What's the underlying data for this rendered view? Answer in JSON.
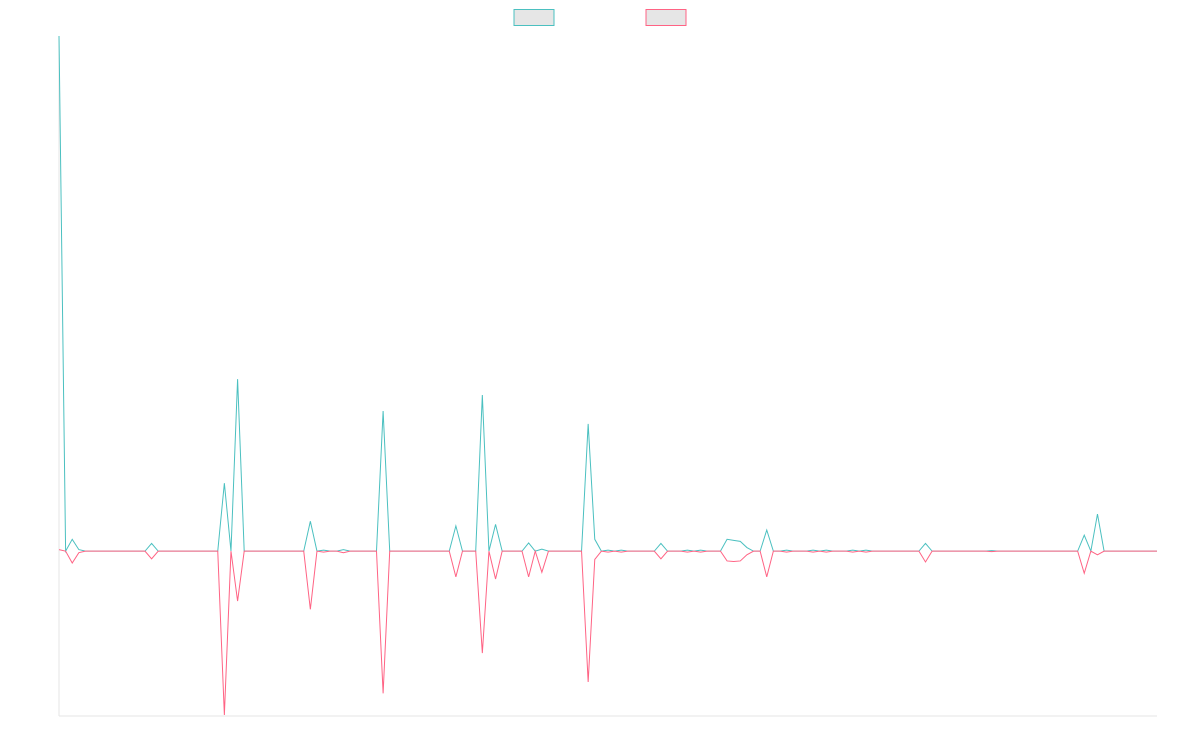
{
  "chart_data": {
    "type": "line",
    "categories": [
      null,
      null,
      null,
      null,
      null,
      null,
      null,
      null,
      null,
      null,
      null,
      null,
      null,
      null,
      null,
      null,
      null,
      null,
      null,
      null,
      null,
      null,
      null,
      null,
      null,
      null,
      null,
      null,
      null,
      null,
      null,
      null,
      null,
      null,
      null,
      null,
      null,
      null,
      null,
      null,
      null,
      null,
      null,
      null,
      null,
      null,
      null,
      null,
      null,
      null,
      null,
      null,
      null,
      null,
      null,
      null,
      null,
      null,
      null,
      null,
      null,
      null,
      null,
      null,
      null,
      null,
      null,
      null,
      null,
      null,
      null,
      null,
      null,
      null,
      null,
      null,
      null,
      null,
      null,
      null,
      null,
      null,
      null,
      null,
      null,
      null,
      null,
      null,
      null,
      null,
      null,
      null,
      null,
      null,
      null,
      null,
      null,
      null,
      null,
      null,
      null,
      null,
      null,
      null,
      null,
      null,
      null,
      null,
      null,
      null,
      null,
      null,
      null,
      null,
      null,
      null,
      null,
      null,
      null,
      null,
      null,
      null,
      null,
      null,
      null,
      null,
      null,
      null,
      null,
      null,
      null,
      null,
      null,
      null,
      null,
      null,
      null,
      null,
      null,
      null,
      null,
      null,
      null,
      null,
      null,
      null,
      null,
      null,
      null,
      null,
      null,
      null,
      null,
      null,
      null,
      null,
      null,
      null,
      null,
      null,
      null,
      null,
      null,
      null,
      null,
      null,
      null
    ],
    "series": [
      {
        "color": "#4bc0c0",
        "values": [
          100,
          0,
          2.3,
          0.3,
          0,
          0,
          0,
          0,
          0,
          0,
          0,
          0,
          0,
          0,
          1.5,
          0,
          0,
          0,
          0,
          0,
          0,
          0,
          0,
          0,
          0,
          13.2,
          0,
          33.4,
          0,
          0,
          0,
          0,
          0,
          0,
          0,
          0,
          0,
          0,
          5.8,
          0,
          0.2,
          0,
          0,
          0.3,
          0,
          0,
          0,
          0,
          0,
          27.2,
          0,
          0,
          0,
          0,
          0,
          0,
          0,
          0,
          0,
          0,
          4.9,
          0,
          0,
          0,
          30.3,
          0,
          5.2,
          0,
          0,
          0,
          0,
          1.6,
          0,
          0.4,
          0,
          0,
          0,
          0,
          0,
          0,
          24.7,
          2.3,
          0,
          0.2,
          0,
          0.2,
          0,
          0,
          0,
          0,
          0,
          1.5,
          0,
          0,
          0,
          0.2,
          0,
          0.2,
          0,
          0,
          0,
          2.3,
          2.1,
          1.9,
          0.7,
          0,
          0,
          4.1,
          0,
          0,
          0.2,
          0,
          0,
          0,
          0.2,
          0,
          0.2,
          0,
          0,
          0,
          0.2,
          0,
          0.2,
          0,
          0,
          0,
          0,
          0,
          0,
          0,
          0,
          1.5,
          0,
          0,
          0,
          0,
          0,
          0,
          0,
          0,
          0,
          0.1,
          0,
          0,
          0,
          0,
          0,
          0,
          0,
          0,
          0,
          0,
          0,
          0,
          0,
          3.1,
          0,
          7.2,
          0,
          0,
          0,
          0,
          0,
          0,
          0,
          0,
          0
        ]
      },
      {
        "color": "#ff6384",
        "values": [
          0.3,
          0,
          -2.3,
          -0.3,
          0,
          0,
          0,
          0,
          0,
          0,
          0,
          0,
          0,
          0,
          -1.5,
          0,
          0,
          0,
          0,
          0,
          0,
          0,
          0,
          0,
          0,
          -31.8,
          0,
          -9.7,
          0,
          0,
          0,
          0,
          0,
          0,
          0,
          0,
          0,
          0,
          -11.3,
          0,
          -0.2,
          0,
          0,
          -0.3,
          0,
          0,
          0,
          0,
          0,
          -27.6,
          0,
          0,
          0,
          0,
          0,
          0,
          0,
          0,
          0,
          0,
          -5.0,
          0,
          0,
          0,
          -19.8,
          0,
          -5.4,
          0,
          0,
          0,
          0,
          -5.0,
          0,
          -4.1,
          0,
          0,
          0,
          0,
          0,
          0,
          -25.4,
          -1.6,
          0,
          -0.2,
          0,
          -0.2,
          0,
          0,
          0,
          0,
          0,
          -1.5,
          0,
          0,
          0,
          -0.2,
          0,
          -0.2,
          0,
          0,
          0,
          -1.9,
          -2.0,
          -1.9,
          -0.7,
          0,
          0,
          -5.0,
          0,
          0,
          -0.2,
          0,
          0,
          0,
          -0.2,
          0,
          -0.2,
          0,
          0,
          0,
          -0.2,
          0,
          -0.2,
          0,
          0,
          0,
          0,
          0,
          0,
          0,
          0,
          -2.1,
          0,
          0,
          0,
          0,
          0,
          0,
          0,
          0,
          0,
          -0.1,
          0,
          0,
          0,
          0,
          0,
          0,
          0,
          0,
          0,
          0,
          0,
          0,
          0,
          -4.3,
          0,
          -0.7,
          0,
          0,
          0,
          0,
          0,
          0,
          0,
          0,
          0
        ]
      }
    ],
    "ylim": [
      -32,
      100
    ]
  }
}
